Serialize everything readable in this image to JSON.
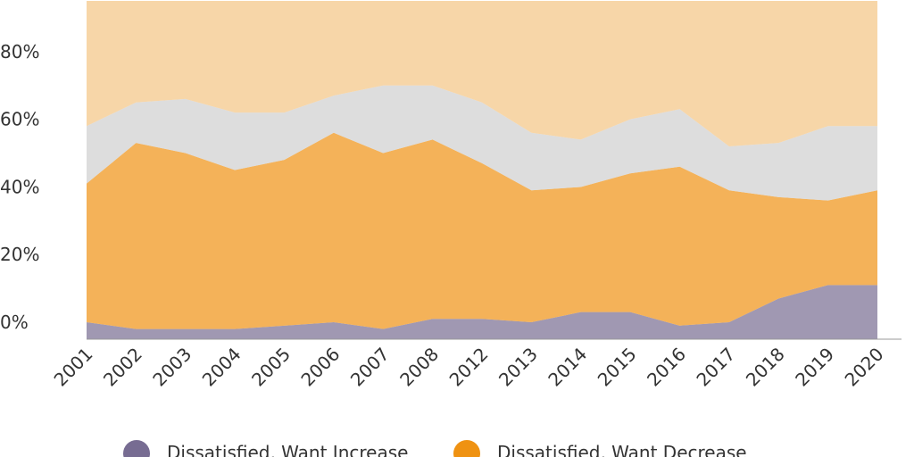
{
  "chart_data": {
    "type": "stacked-area",
    "categories": [
      "2001",
      "2002",
      "2003",
      "2004",
      "2005",
      "2006",
      "2007",
      "2008",
      "2012",
      "2013",
      "2014",
      "2015",
      "2016",
      "2017",
      "2018",
      "2019",
      "2020"
    ],
    "series": [
      {
        "name": "Dissatisfied, Want Increase",
        "color": "#776c92",
        "values": [
          5,
          3,
          3,
          3,
          4,
          5,
          3,
          6,
          6,
          5,
          8,
          8,
          4,
          5,
          12,
          16,
          16
        ]
      },
      {
        "name": "Dissatisfied, Want Decrease",
        "color": "#ef9212",
        "values": [
          41,
          55,
          52,
          47,
          49,
          56,
          52,
          53,
          46,
          39,
          37,
          41,
          47,
          39,
          30,
          25,
          28
        ]
      },
      {
        "color": "#cecece",
        "values": [
          17,
          12,
          16,
          17,
          14,
          11,
          20,
          16,
          18,
          17,
          14,
          16,
          17,
          13,
          16,
          22,
          19
        ]
      },
      {
        "color": "#f3c583",
        "values": [
          37,
          30,
          29,
          33,
          33,
          28,
          25,
          25,
          30,
          39,
          41,
          35,
          32,
          43,
          42,
          37,
          37
        ]
      }
    ],
    "ylim": [
      0,
      100
    ],
    "yticks": [
      {
        "value": 0,
        "label": "0%"
      },
      {
        "value": 20,
        "label": "20%"
      },
      {
        "value": 40,
        "label": "40%"
      },
      {
        "value": 60,
        "label": "60%"
      },
      {
        "value": 80,
        "label": "80%"
      }
    ],
    "grid": false
  }
}
